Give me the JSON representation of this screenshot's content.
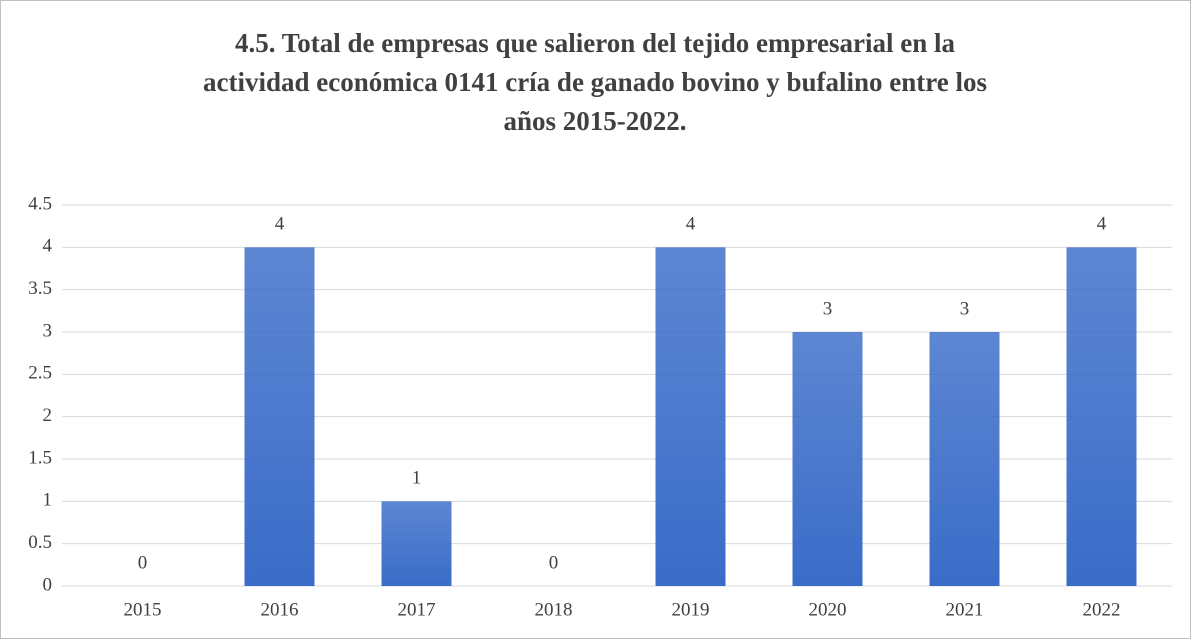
{
  "chart_data": {
    "type": "bar",
    "title": [
      "4.5. Total de empresas que salieron del tejido empresarial en la",
      "actividad económica 0141 cría de ganado bovino y bufalino entre los",
      "años 2015-2022."
    ],
    "categories": [
      "2015",
      "2016",
      "2017",
      "2018",
      "2019",
      "2020",
      "2021",
      "2022"
    ],
    "values": [
      0,
      4,
      1,
      0,
      4,
      3,
      3,
      4
    ],
    "color": "#3a6cc8",
    "ylim": [
      0,
      4.5
    ],
    "yticks": [
      0,
      0.5,
      1,
      1.5,
      2,
      2.5,
      3,
      3.5,
      4,
      4.5
    ],
    "grid": true
  }
}
